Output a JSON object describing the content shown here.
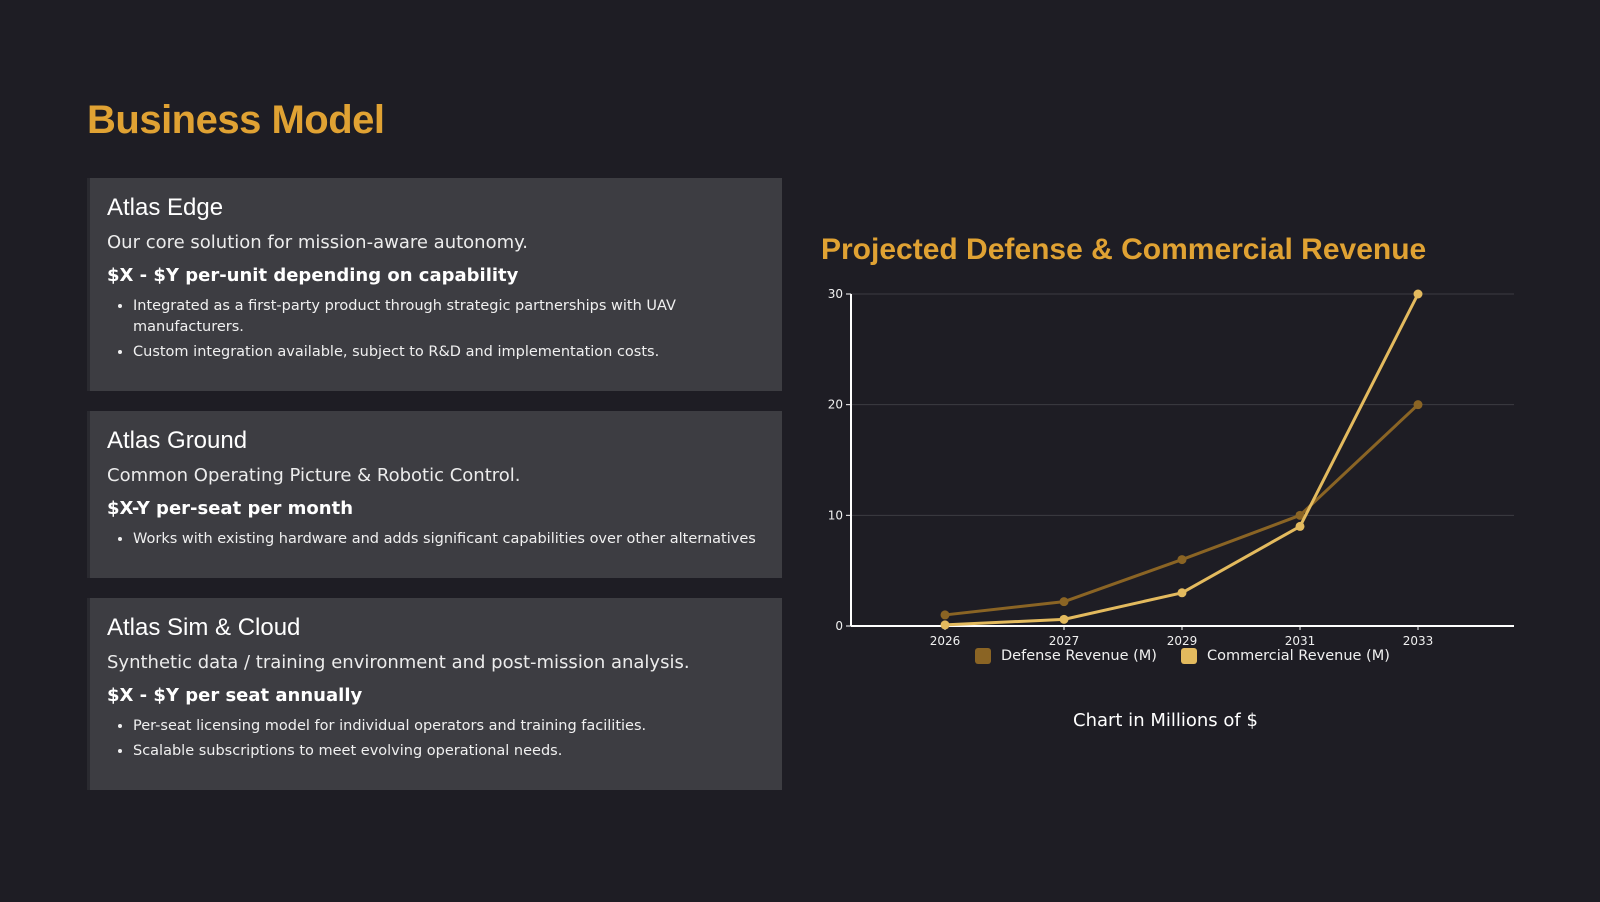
{
  "page": {
    "title": "Business Model"
  },
  "products": [
    {
      "title": "Atlas Edge",
      "description": "Our core solution for mission-aware autonomy.",
      "price": "$X - $Y per-unit depending on capability",
      "bullets": [
        "Integrated as a first-party product through strategic partnerships with UAV manufacturers.",
        "Custom integration available, subject to R&D and implementation costs."
      ]
    },
    {
      "title": "Atlas Ground",
      "description": "Common Operating Picture & Robotic Control.",
      "price": "$X-Y per-seat per month",
      "bullets": [
        "Works with existing hardware and adds significant capabilities over other alternatives"
      ]
    },
    {
      "title": "Atlas Sim & Cloud",
      "description": "Synthetic data / training environment and post-mission analysis.",
      "price": "$X - $Y per seat annually",
      "bullets": [
        "Per-seat licensing model for individual operators and training facilities.",
        "Scalable subscriptions to meet evolving operational needs."
      ]
    }
  ],
  "chart_data": {
    "type": "line",
    "title": "Projected Defense & Commercial Revenue",
    "caption": "Chart in Millions of $",
    "x": [
      "2026",
      "2027",
      "2029",
      "2031",
      "2033"
    ],
    "ylim": [
      0,
      30
    ],
    "yticks": [
      0,
      10,
      20,
      30
    ],
    "grid": true,
    "legend_position": "bottom",
    "series": [
      {
        "name": "Defense Revenue (M)",
        "color": "#8a6424",
        "values": [
          1,
          2.2,
          6,
          10,
          20
        ]
      },
      {
        "name": "Commercial Revenue (M)",
        "color": "#e3ba5e",
        "values": [
          0.1,
          0.6,
          3,
          9,
          30
        ]
      }
    ]
  }
}
